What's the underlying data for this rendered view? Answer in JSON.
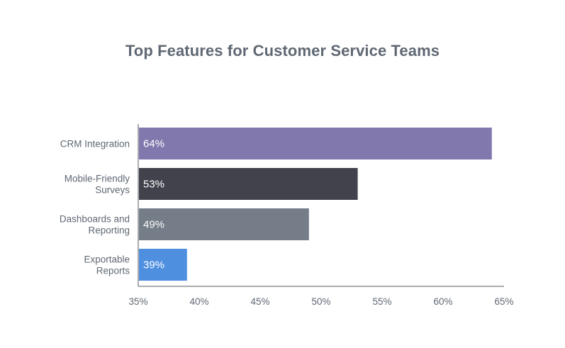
{
  "chart_data": {
    "type": "bar",
    "orientation": "horizontal",
    "title": "Top Features for Customer Service Teams",
    "categories": [
      [
        "CRM Integration"
      ],
      [
        "Mobile-Friendly",
        "Surveys"
      ],
      [
        "Dashboards and",
        "Reporting"
      ],
      [
        "Exportable",
        "Reports"
      ]
    ],
    "values": [
      64,
      53,
      49,
      39
    ],
    "data_labels": [
      "64%",
      "53%",
      "49%",
      "39%"
    ],
    "colors": [
      "#8179ae",
      "#41424c",
      "#747d88",
      "#4f8fe0"
    ],
    "xlim": [
      35,
      65
    ],
    "xticks": [
      35,
      40,
      45,
      50,
      55,
      60,
      65
    ],
    "xtick_labels": [
      "35%",
      "40%",
      "45%",
      "50%",
      "55%",
      "60%",
      "65%"
    ],
    "xlabel": "",
    "ylabel": "",
    "grid": false,
    "legend": "none"
  }
}
